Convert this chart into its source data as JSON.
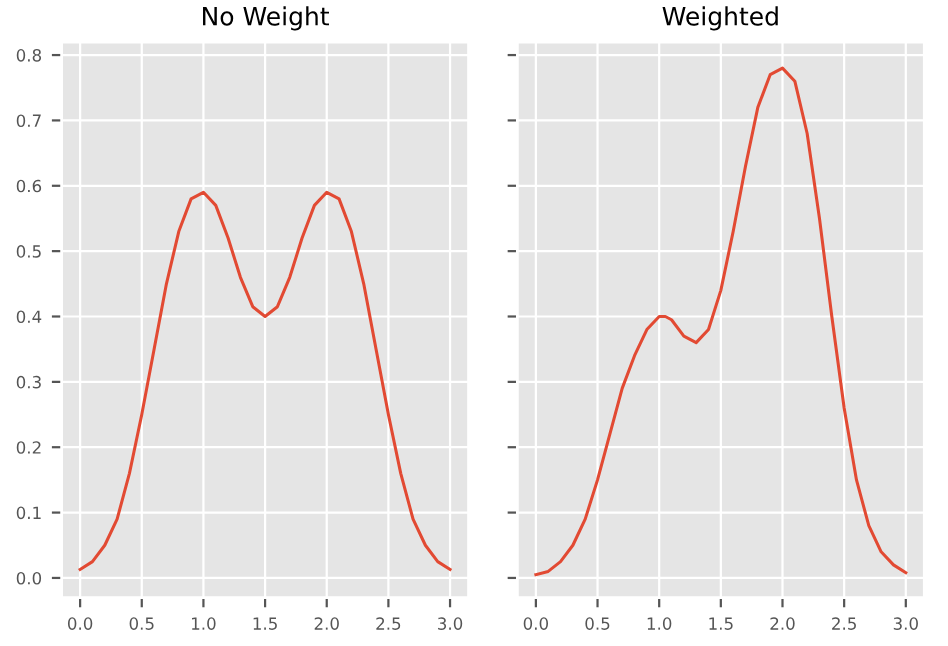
{
  "chart_data": [
    {
      "type": "line",
      "title": "No Weight",
      "x": [
        0,
        0.1,
        0.2,
        0.3,
        0.4,
        0.5,
        0.6,
        0.7,
        0.8,
        0.9,
        1.0,
        1.1,
        1.2,
        1.3,
        1.4,
        1.5,
        1.6,
        1.7,
        1.8,
        1.9,
        2.0,
        2.1,
        2.2,
        2.3,
        2.4,
        2.5,
        2.6,
        2.7,
        2.8,
        2.9,
        3.0
      ],
      "series": [
        {
          "color": "#e24a33",
          "values": [
            0.013,
            0.025,
            0.05,
            0.09,
            0.16,
            0.25,
            0.35,
            0.45,
            0.53,
            0.58,
            0.59,
            0.57,
            0.52,
            0.46,
            0.415,
            0.4,
            0.415,
            0.46,
            0.52,
            0.57,
            0.59,
            0.58,
            0.53,
            0.45,
            0.35,
            0.25,
            0.16,
            0.09,
            0.05,
            0.025,
            0.013
          ]
        }
      ],
      "xlim": [
        -0.15,
        3.15
      ],
      "ylim": [
        -0.03,
        0.82
      ],
      "xticks": [
        {
          "value": 0,
          "label": "0.0"
        },
        0.5,
        {
          "value": 1,
          "label": "1.0"
        },
        1.5,
        {
          "value": 2,
          "label": "2.0"
        },
        2.5,
        {
          "value": 3,
          "label": "3.0"
        }
      ],
      "yticks": [
        {
          "value": 0,
          "label": "0.0"
        },
        0.1,
        0.2,
        0.3,
        0.4,
        0.5,
        0.6,
        0.7,
        0.8
      ],
      "grid": true
    },
    {
      "type": "line",
      "title": "Weighted",
      "x": [
        0,
        0.1,
        0.2,
        0.3,
        0.4,
        0.5,
        0.6,
        0.7,
        0.8,
        0.9,
        1.0,
        1.05,
        1.1,
        1.2,
        1.3,
        1.4,
        1.5,
        1.6,
        1.7,
        1.8,
        1.9,
        2.0,
        2.1,
        2.2,
        2.3,
        2.4,
        2.5,
        2.6,
        2.7,
        2.8,
        2.9,
        3.0
      ],
      "series": [
        {
          "color": "#e24a33",
          "values": [
            0.005,
            0.01,
            0.025,
            0.05,
            0.09,
            0.15,
            0.22,
            0.29,
            0.34,
            0.38,
            0.4,
            0.4,
            0.395,
            0.37,
            0.36,
            0.38,
            0.44,
            0.53,
            0.63,
            0.72,
            0.77,
            0.78,
            0.76,
            0.68,
            0.55,
            0.4,
            0.26,
            0.15,
            0.08,
            0.04,
            0.02,
            0.008
          ]
        }
      ],
      "xlim": [
        -0.15,
        3.15
      ],
      "ylim": [
        -0.03,
        0.82
      ],
      "xticks": [
        {
          "value": 0,
          "label": "0.0"
        },
        0.5,
        {
          "value": 1,
          "label": "1.0"
        },
        1.5,
        {
          "value": 2,
          "label": "2.0"
        },
        2.5,
        {
          "value": 3,
          "label": "3.0"
        }
      ],
      "yticks": [
        0,
        0.1,
        0.2,
        0.3,
        0.4,
        0.5,
        0.6,
        0.7,
        0.8
      ],
      "grid": true,
      "tick_labels": "x"
    }
  ]
}
